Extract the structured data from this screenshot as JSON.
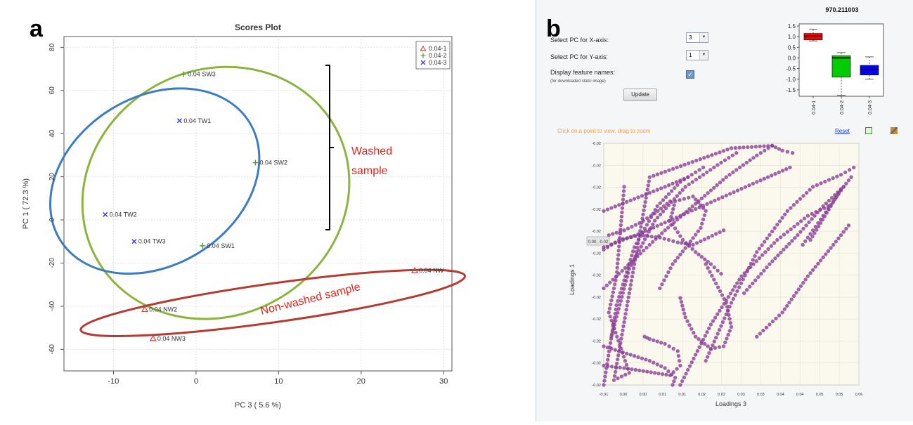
{
  "panel_a": {
    "letter": "a",
    "chart_data": {
      "type": "scatter",
      "title": "Scores Plot",
      "xlabel": "PC 3 ( 5.6 %)",
      "ylabel": "PC 1 ( 72.3 %)",
      "xlim": [
        -16,
        31
      ],
      "ylim": [
        -70,
        85
      ],
      "x_ticks": [
        -10,
        0,
        10,
        20,
        30
      ],
      "y_ticks": [
        -60,
        -40,
        -20,
        0,
        20,
        40,
        60,
        80
      ],
      "x_tick_labels": [
        "-10",
        "0",
        "10",
        "20",
        "30"
      ],
      "y_tick_labels": [
        "-60",
        "-40",
        "-20",
        "0",
        "20",
        "40",
        "60",
        "80"
      ],
      "grid": true,
      "legend_position": "top-right",
      "series": [
        {
          "name": "0.04-1",
          "color": "#d24a3c",
          "marker": "triangle",
          "points": [
            {
              "x": 26.5,
              "y": -23.5,
              "label": "0.04 NW"
            },
            {
              "x": -6.2,
              "y": -41.5,
              "label": "0.04 NW2"
            },
            {
              "x": -5.2,
              "y": -55.0,
              "label": "0.04 NW3"
            }
          ]
        },
        {
          "name": "0.04-2",
          "color": "#5aa03a",
          "marker": "plus",
          "points": [
            {
              "x": -1.5,
              "y": 67.5,
              "label": "0.04 SW3"
            },
            {
              "x": 7.2,
              "y": 26.5,
              "label": "0.04 SW2"
            },
            {
              "x": 0.8,
              "y": -12.0,
              "label": "0.04 SW1"
            }
          ]
        },
        {
          "name": "0.04-3",
          "color": "#3a3ad8",
          "marker": "x",
          "points": [
            {
              "x": -2.0,
              "y": 46.0,
              "label": "0.04 TW1"
            },
            {
              "x": -11.0,
              "y": 2.5,
              "label": "0.04 TW2"
            },
            {
              "x": -7.5,
              "y": -10.0,
              "label": "0.04 TW3"
            }
          ]
        }
      ],
      "ellipses": [
        {
          "group": "0.04-2",
          "color": "#8cb43c",
          "cx": 2.4,
          "cy": 12.5,
          "rx": 16.5,
          "ry": 57,
          "angle": -28
        },
        {
          "group": "0.04-3",
          "color": "#3c7cc2",
          "cx": -5.0,
          "cy": 18.0,
          "rx": 13.5,
          "ry": 39,
          "angle": -32
        },
        {
          "group": "0.04-1",
          "color": "#b43a32",
          "cx": 9.3,
          "cy": -38.5,
          "rx": 23.5,
          "ry": 9,
          "angle": -8
        }
      ]
    },
    "annotations": {
      "washed_line1": "Washed",
      "washed_line2": "sample",
      "nonwashed": "Non-washed sample"
    },
    "colors": {
      "annotation_text": "#e2231a",
      "bracket": "#000000"
    }
  },
  "panel_b": {
    "letter": "b",
    "controls": {
      "x_axis_label": "Select PC for X-axis:",
      "x_axis_value": "3",
      "y_axis_label": "Select PC for Y-axis:",
      "y_axis_value": "1",
      "feature_names_label": "Display feature names:",
      "feature_names_note": "(for downloaded static image)",
      "feature_names_checked": true,
      "update_label": "Update"
    },
    "hint": "Click on a point to view, drag to zoom",
    "reset_label": "Reset",
    "tooltip": "0.00, -0.02",
    "boxplot": {
      "title": "970.211003",
      "type": "box",
      "categories": [
        "0.04-1",
        "0.04-2",
        "0.04-3"
      ],
      "y_ticks": [
        1.5,
        1.0,
        0.5,
        0.0,
        -0.5,
        -1.0,
        -1.5
      ],
      "y_tick_labels": [
        "1.5",
        "1.0",
        "0.5",
        "0.0",
        "-0.5",
        "-1.0",
        "-1.5"
      ],
      "ylim": [
        -1.8,
        1.6
      ],
      "boxes": [
        {
          "name": "0.04-1",
          "color": "#ff0000",
          "min": 0.8,
          "q1": 0.85,
          "median": 1.02,
          "q3": 1.15,
          "max": 1.35
        },
        {
          "name": "0.04-2",
          "color": "#00cc00",
          "min": -1.75,
          "q1": -0.9,
          "median": 0.0,
          "q3": 0.1,
          "max": 0.25
        },
        {
          "name": "0.04-3",
          "color": "#0000ff",
          "min": -1.0,
          "q1": -0.8,
          "median": -0.55,
          "q3": -0.35,
          "max": 0.05
        }
      ]
    },
    "loadings_chart": {
      "type": "scatter",
      "xlabel": "Loadings 3",
      "ylabel": "Loadings 1",
      "x_tick_labels": [
        "-0.01",
        "0.00",
        "0.00",
        "0.01",
        "0.01",
        "0.02",
        "0.02",
        "0.03",
        "0.03",
        "0.04",
        "0.04",
        "0.05",
        "0.05",
        "0.06"
      ],
      "y_tick_labels": [
        "-0.02",
        "-0.02",
        "-0.02",
        "-0.02",
        "-0.02",
        "-0.02",
        "-0.02",
        "-0.02",
        "-0.02",
        "-0.02",
        "-0.02",
        "-0.02",
        "-0.02",
        "-0.02",
        "-0.02",
        "-0.02",
        "-0.02",
        "-0.02",
        "-0.02",
        "-0.02",
        "-0.02",
        "-0.02",
        "-0.02",
        "-0.02",
        "-0.02",
        "-0.02",
        "-0.02",
        "-0.02",
        "-0.02",
        "-0.02",
        "-0.02",
        "-0.02",
        "-0.02",
        "-0.02",
        "-0.02",
        "-0.02",
        "-0.02",
        "-0.02",
        "-0.02",
        "-0.02",
        "-0.02",
        "-0.02",
        "-0.02",
        "-0.02",
        "-0.02",
        "-0.02",
        "-0.02",
        "-0.02",
        "-0.02",
        "-0.02",
        "-0.02",
        "-0.02",
        "-0.02",
        "-0.02",
        "-0.02",
        "-0.02",
        "-0.02",
        "-0.02",
        "-0.02",
        "-0.02",
        "-0.02",
        "-0.02",
        "-0.02",
        "-0.02",
        "-0.02",
        "-0.02",
        "-0.02",
        "-0.02",
        "-0.02",
        "-0.02",
        "-0.02",
        "-0.02",
        "-0.02",
        "-0.02",
        "-0.02",
        "-0.02",
        "-0.02",
        "-0.02",
        "-0.02",
        "-0.02",
        "-0.02",
        "-0.02",
        "-0.02",
        "-0.02",
        "-0.02",
        "-0.02",
        "-0.02",
        "-0.02",
        "-0.02",
        "-0.02",
        "-0.02",
        "-0.02",
        "-0.02",
        "-0.02",
        "-0.02",
        "-0.02",
        "-0.02",
        "-0.02"
      ],
      "grid": true,
      "point_color": "#8a3e96",
      "paths": [
        {
          "name": "arc-1",
          "points": [
            [
              0.0,
              0.0
            ],
            [
              0.05,
              0.33
            ],
            [
              0.12,
              0.57
            ],
            [
              0.21,
              0.74
            ],
            [
              0.3,
              0.84
            ],
            [
              0.39,
              0.9
            ]
          ]
        },
        {
          "name": "arc-2",
          "points": [
            [
              0.03,
              0.2
            ],
            [
              0.1,
              0.48
            ],
            [
              0.2,
              0.68
            ],
            [
              0.32,
              0.82
            ],
            [
              0.46,
              0.92
            ],
            [
              0.52,
              0.96
            ]
          ]
        },
        {
          "name": "arc-3",
          "points": [
            [
              0.0,
              0.4
            ],
            [
              0.12,
              0.52
            ],
            [
              0.24,
              0.64
            ],
            [
              0.36,
              0.75
            ],
            [
              0.48,
              0.86
            ],
            [
              0.6,
              0.95
            ],
            [
              0.66,
              0.99
            ]
          ]
        },
        {
          "name": "arc-4",
          "points": [
            [
              0.0,
              0.57
            ],
            [
              0.15,
              0.63
            ],
            [
              0.3,
              0.7
            ],
            [
              0.45,
              0.77
            ],
            [
              0.6,
              0.84
            ],
            [
              0.73,
              0.9
            ]
          ]
        },
        {
          "name": "arc-5",
          "points": [
            [
              0.02,
              0.62
            ],
            [
              0.08,
              0.64
            ],
            [
              0.14,
              0.67
            ],
            [
              0.2,
              0.71
            ],
            [
              0.26,
              0.76
            ]
          ]
        },
        {
          "name": "arc-6",
          "points": [
            [
              0.0,
              0.72
            ],
            [
              0.12,
              0.77
            ],
            [
              0.24,
              0.82
            ],
            [
              0.33,
              0.86
            ]
          ]
        },
        {
          "name": "arc-7",
          "points": [
            [
              0.4,
              0.1
            ],
            [
              0.5,
              0.34
            ],
            [
              0.6,
              0.55
            ],
            [
              0.72,
              0.72
            ],
            [
              0.82,
              0.82
            ],
            [
              0.93,
              0.87
            ],
            [
              0.98,
              0.9
            ]
          ]
        },
        {
          "name": "arc-8",
          "points": [
            [
              0.3,
              0.0
            ],
            [
              0.42,
              0.25
            ],
            [
              0.54,
              0.45
            ],
            [
              0.68,
              0.6
            ],
            [
              0.8,
              0.7
            ],
            [
              0.88,
              0.74
            ]
          ]
        },
        {
          "name": "arc-9",
          "points": [
            [
              0.55,
              0.38
            ],
            [
              0.65,
              0.5
            ],
            [
              0.76,
              0.62
            ],
            [
              0.86,
              0.74
            ],
            [
              0.94,
              0.82
            ]
          ]
        },
        {
          "name": "arc-10",
          "points": [
            [
              0.6,
              0.2
            ],
            [
              0.7,
              0.3
            ],
            [
              0.8,
              0.45
            ],
            [
              0.9,
              0.58
            ],
            [
              0.96,
              0.66
            ]
          ]
        },
        {
          "name": "cluster-1",
          "points": [
            [
              0.22,
              0.4
            ],
            [
              0.27,
              0.5
            ],
            [
              0.33,
              0.58
            ],
            [
              0.38,
              0.65
            ],
            [
              0.4,
              0.72
            ],
            [
              0.35,
              0.78
            ],
            [
              0.28,
              0.76
            ],
            [
              0.26,
              0.68
            ],
            [
              0.31,
              0.6
            ],
            [
              0.36,
              0.55
            ],
            [
              0.42,
              0.5
            ],
            [
              0.46,
              0.46
            ]
          ]
        },
        {
          "name": "cluster-2",
          "points": [
            [
              0.0,
              0.56
            ],
            [
              0.06,
              0.6
            ],
            [
              0.14,
              0.62
            ],
            [
              0.22,
              0.61
            ],
            [
              0.29,
              0.59
            ],
            [
              0.35,
              0.58
            ],
            [
              0.41,
              0.61
            ],
            [
              0.47,
              0.64
            ]
          ]
        },
        {
          "name": "loop",
          "points": [
            [
              0.3,
              0.36
            ],
            [
              0.32,
              0.28
            ],
            [
              0.36,
              0.2
            ],
            [
              0.42,
              0.15
            ],
            [
              0.47,
              0.16
            ],
            [
              0.5,
              0.24
            ],
            [
              0.48,
              0.34
            ],
            [
              0.44,
              0.42
            ],
            [
              0.4,
              0.5
            ]
          ]
        },
        {
          "name": "lower-bundle",
          "points": [
            [
              0.0,
              0.16
            ],
            [
              0.06,
              0.14
            ],
            [
              0.12,
              0.12
            ],
            [
              0.18,
              0.1
            ],
            [
              0.24,
              0.07
            ],
            [
              0.28,
              0.03
            ],
            [
              0.27,
              0.0
            ]
          ]
        },
        {
          "name": "lower-loop",
          "points": [
            [
              0.0,
              0.08
            ],
            [
              0.08,
              0.07
            ],
            [
              0.14,
              0.06
            ],
            [
              0.2,
              0.05
            ],
            [
              0.26,
              0.04
            ],
            [
              0.3,
              0.08
            ],
            [
              0.29,
              0.14
            ],
            [
              0.24,
              0.17
            ],
            [
              0.18,
              0.19
            ],
            [
              0.16,
              0.2
            ]
          ]
        },
        {
          "name": "right-line",
          "points": [
            [
              0.78,
              0.58
            ],
            [
              0.82,
              0.64
            ],
            [
              0.86,
              0.7
            ],
            [
              0.9,
              0.76
            ],
            [
              0.94,
              0.82
            ],
            [
              0.97,
              0.86
            ]
          ]
        },
        {
          "name": "right-line-2",
          "points": [
            [
              0.81,
              0.6
            ],
            [
              0.85,
              0.67
            ],
            [
              0.89,
              0.74
            ],
            [
              0.93,
              0.81
            ]
          ]
        },
        {
          "name": "scatter-left",
          "points": [
            [
              0.08,
              0.82
            ],
            [
              0.05,
              0.45
            ],
            [
              0.02,
              0.3
            ],
            [
              0.1,
              0.05
            ],
            [
              0.04,
              0.02
            ],
            [
              0.18,
              0.86
            ],
            [
              0.5,
              0.98
            ],
            [
              0.66,
              0.99
            ],
            [
              0.7,
              0.97
            ],
            [
              0.74,
              0.96
            ]
          ]
        }
      ]
    }
  }
}
